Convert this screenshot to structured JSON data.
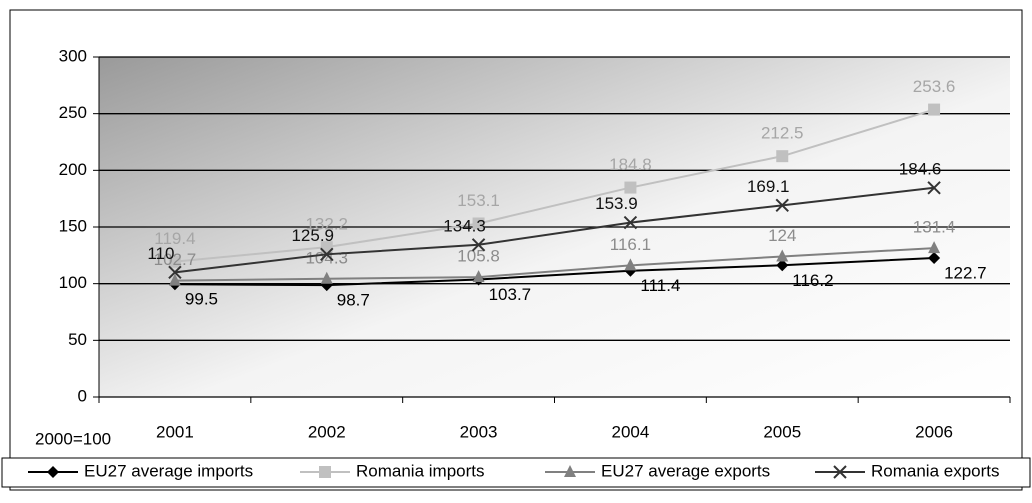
{
  "chart_data": {
    "type": "line",
    "annotation": "2000=100",
    "categories": [
      "2001",
      "2002",
      "2003",
      "2004",
      "2005",
      "2006"
    ],
    "series": [
      {
        "name": "EU27 average imports",
        "color": "#000000",
        "label_color": "#000000",
        "marker": "diamond",
        "values": [
          99.5,
          98.7,
          103.7,
          111.4,
          116.2,
          122.7
        ]
      },
      {
        "name": "Romania imports",
        "color": "#c0c0c0",
        "label_color": "#a6a6a6",
        "marker": "square",
        "values": [
          119.4,
          132.2,
          153.1,
          184.8,
          212.5,
          253.6
        ]
      },
      {
        "name": "EU27 average exports",
        "color": "#808080",
        "label_color": "#8c8c8c",
        "marker": "triangle",
        "values": [
          102.7,
          104.3,
          105.8,
          116.1,
          124,
          131.4
        ]
      },
      {
        "name": "Romania exports",
        "color": "#333333",
        "label_color": "#111111",
        "marker": "x",
        "values": [
          110,
          125.9,
          134.3,
          153.9,
          169.1,
          184.6
        ]
      }
    ],
    "ylim": [
      0,
      300
    ],
    "yticks": [
      0,
      50,
      100,
      150,
      200,
      250,
      300
    ],
    "grid": true,
    "legend": "bottom"
  }
}
